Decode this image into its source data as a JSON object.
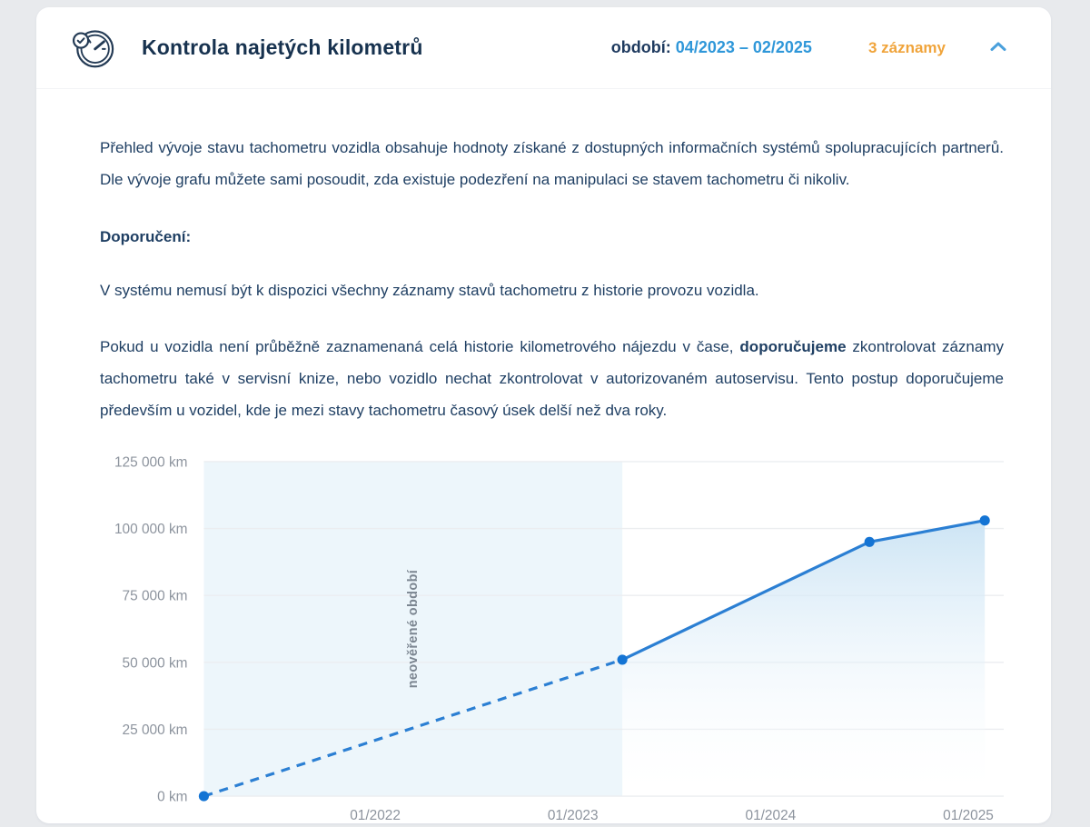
{
  "header": {
    "title": "Kontrola najetých kilometrů",
    "period_label": "období:",
    "period_value": "04/2023 – 02/2025",
    "records_badge": "3 záznamy",
    "colors": {
      "title": "#17324f",
      "period_value": "#2f97d9",
      "records_badge": "#f0a43b",
      "chevron": "#4aa0dc",
      "icon": "#243b55"
    }
  },
  "body": {
    "paragraph1": "Přehled vývoje stavu tachometru vozidla obsahuje hodnoty získané z dostupných informačních systémů spolupracujících partnerů. Dle vývoje grafu můžete sami posoudit, zda existuje podezření na manipulaci se stavem tachometru či nikoliv.",
    "recommendation_heading": "Doporučení:",
    "paragraph2": "V systému nemusí být k dispozici všechny záznamy stavů tachometru z historie provozu vozidla.",
    "paragraph3_part1": "Pokud u vozidla není průběžně zaznamenaná celá historie kilometrového nájezdu v čase, ",
    "paragraph3_bold": "doporučujeme",
    "paragraph3_part2": " zkontrolovat záznamy tachometru také v servisní knize, nebo vozidlo nechat zkontrolovat v autorizovaném autoservisu. Tento postup doporučujeme především u vozidel, kde je mezi stavy tachometru časový úsek delší než dva roky."
  },
  "chart_data": {
    "type": "line",
    "ylabel": "km",
    "y_domain": [
      0,
      125000
    ],
    "t_domain_months_since_jan_2021": [
      1.6,
      49.6
    ],
    "y_ticks": [
      {
        "value": 0,
        "label": "0 km"
      },
      {
        "value": 25000,
        "label": "25 000 km"
      },
      {
        "value": 50000,
        "label": "50 000 km"
      },
      {
        "value": 75000,
        "label": "75 000 km"
      },
      {
        "value": 100000,
        "label": "100 000 km"
      },
      {
        "value": 125000,
        "label": "125 000 km"
      }
    ],
    "x_ticks": [
      {
        "t": 12,
        "label": "01/2022"
      },
      {
        "t": 24,
        "label": "01/2023"
      },
      {
        "t": 36,
        "label": "01/2024"
      },
      {
        "t": 48,
        "label": "01/2025"
      }
    ],
    "points": [
      {
        "date_est": "03/2021",
        "t": 1.6,
        "km": 0,
        "verified": false
      },
      {
        "date_est": "04/2023",
        "t": 27,
        "km": 51000,
        "verified": true
      },
      {
        "date_est": "07/2024",
        "t": 42,
        "km": 95000,
        "verified": true
      },
      {
        "date_est": "02/2025",
        "t": 49,
        "km": 103000,
        "verified": true
      }
    ],
    "unverified_region_label": "neověřené období",
    "grid": true,
    "legend": false,
    "colors": {
      "line": "#2b7fd3",
      "marker": "#1474d4",
      "unverified_region": "#edf6fb",
      "grid": "#ebedf0",
      "axis_label": "#8d949e",
      "fill_top": "#cae3f4"
    }
  }
}
